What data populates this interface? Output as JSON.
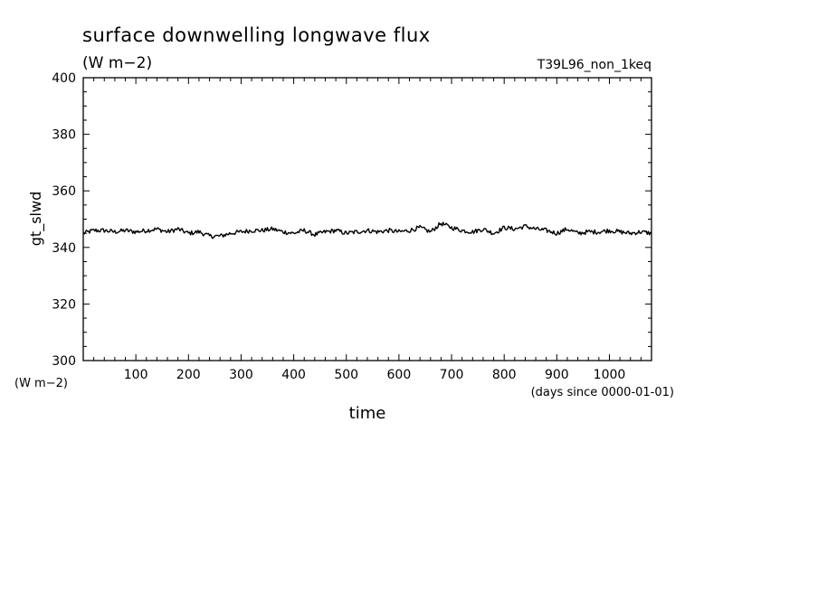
{
  "title": "surface downwelling longwave flux",
  "units": "(W m−2)",
  "experiment": "T39L96_non_1keq",
  "colors": {
    "line": "#000000",
    "axis": "#000000",
    "background": "#ffffff"
  },
  "chart_data": {
    "type": "line",
    "title": "surface downwelling longwave flux",
    "subtitle": "(W m−2)",
    "experiment_label": "T39L96_non_1keq",
    "xlabel": "time",
    "x_units": "(days since 0000-01-01)",
    "ylabel": "gt_slwd",
    "y_units": "(W m−2)",
    "xlim": [
      0,
      1080
    ],
    "ylim": [
      300,
      400
    ],
    "x_ticks": [
      100,
      200,
      300,
      400,
      500,
      600,
      700,
      800,
      900,
      1000
    ],
    "y_ticks": [
      300,
      320,
      340,
      360,
      380,
      400
    ],
    "grid": false,
    "series": [
      {
        "x": [
          0,
          20,
          40,
          60,
          80,
          100,
          120,
          140,
          160,
          180,
          200,
          220,
          240,
          260,
          280,
          300,
          320,
          340,
          360,
          380,
          400,
          420,
          440,
          460,
          480,
          500,
          520,
          540,
          560,
          580,
          600,
          620,
          640,
          660,
          680,
          700,
          720,
          740,
          760,
          780,
          800,
          820,
          840,
          860,
          880,
          900,
          920,
          940,
          960,
          980,
          1000,
          1020,
          1040,
          1060,
          1080
        ],
        "y": [
          345,
          346,
          346,
          345.5,
          346,
          345.5,
          346,
          346.5,
          345.5,
          346.5,
          345,
          345.5,
          344,
          344,
          345,
          345.5,
          346,
          346,
          346.5,
          345.5,
          345,
          346,
          344.5,
          345.5,
          346,
          345,
          345.5,
          346,
          345.5,
          346,
          345.5,
          346,
          347,
          345.5,
          348.5,
          347,
          346,
          345.5,
          346.5,
          345,
          347,
          346.5,
          347.5,
          346.5,
          346,
          345,
          346.5,
          345,
          345.5,
          345.5,
          346,
          345.5,
          345,
          345.5,
          345
        ]
      }
    ]
  }
}
